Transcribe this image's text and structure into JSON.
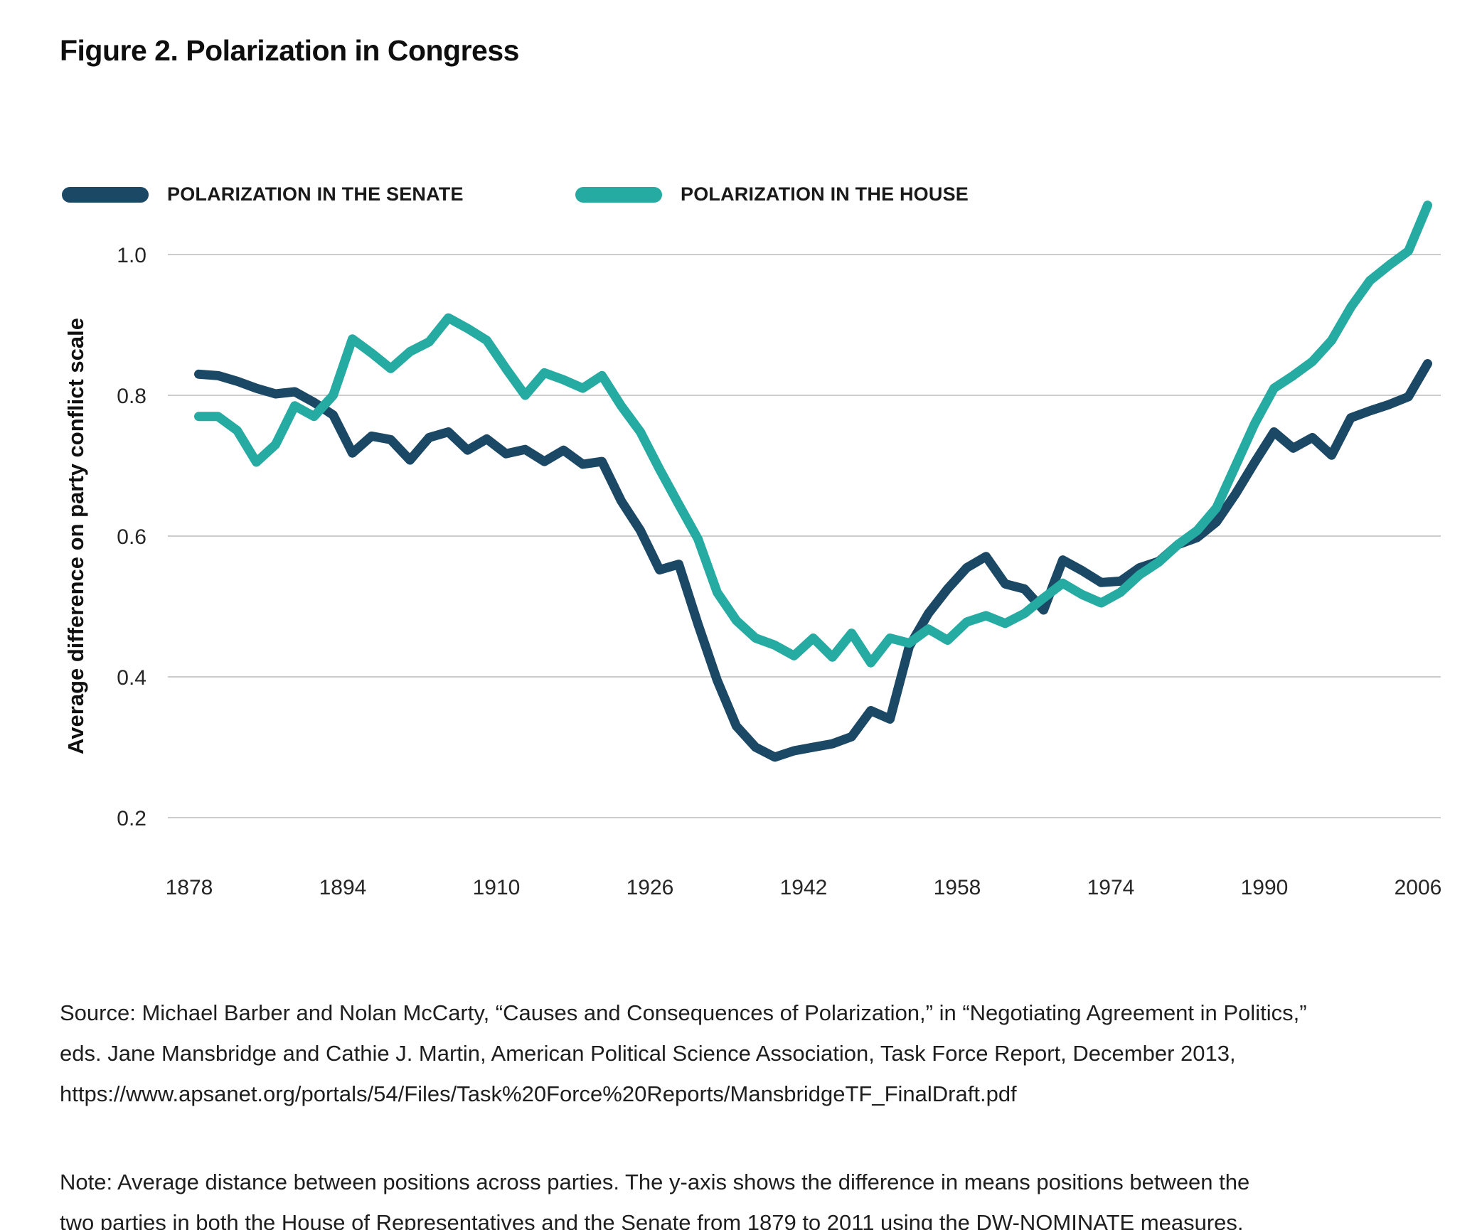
{
  "figure": {
    "title": "Figure 2. Polarization in Congress"
  },
  "legend": [
    {
      "label": "POLARIZATION IN THE SENATE",
      "color": "#1b4865"
    },
    {
      "label": "POLARIZATION IN THE HOUSE",
      "color": "#25aba1"
    }
  ],
  "chart_data": {
    "type": "line",
    "title": "Figure 2. Polarization in Congress",
    "xlabel": "",
    "ylabel": "Average difference on party conflict scale",
    "grid": "horizontal",
    "legend_position": "top-left",
    "xlim": [
      1876,
      2010
    ],
    "ylim": [
      0.13,
      1.12
    ],
    "x_ticks": [
      1878,
      1894,
      1910,
      1926,
      1942,
      1958,
      1974,
      1990,
      2006
    ],
    "y_ticks": [
      {
        "label": "1.0",
        "value": 1.0
      },
      {
        "label": "0.8",
        "value": 0.8
      },
      {
        "label": "0.6",
        "value": 0.6
      },
      {
        "label": "0.4",
        "value": 0.4
      },
      {
        "label": "0.2",
        "value": 0.2
      }
    ],
    "x": [
      1879,
      1881,
      1883,
      1885,
      1887,
      1889,
      1891,
      1893,
      1895,
      1897,
      1899,
      1901,
      1903,
      1905,
      1907,
      1909,
      1911,
      1913,
      1915,
      1917,
      1919,
      1921,
      1923,
      1925,
      1927,
      1929,
      1931,
      1933,
      1935,
      1937,
      1939,
      1941,
      1943,
      1945,
      1947,
      1949,
      1951,
      1953,
      1955,
      1957,
      1959,
      1961,
      1963,
      1965,
      1967,
      1969,
      1971,
      1973,
      1975,
      1977,
      1979,
      1981,
      1983,
      1985,
      1987,
      1989,
      1991,
      1993,
      1995,
      1997,
      1999,
      2001,
      2003,
      2005,
      2007
    ],
    "series": [
      {
        "name": "POLARIZATION IN THE SENATE",
        "color": "#1b4865",
        "values": [
          0.83,
          0.828,
          0.82,
          0.81,
          0.802,
          0.805,
          0.79,
          0.772,
          0.718,
          0.742,
          0.737,
          0.708,
          0.74,
          0.748,
          0.722,
          0.738,
          0.717,
          0.723,
          0.706,
          0.722,
          0.702,
          0.706,
          0.65,
          0.608,
          0.552,
          0.56,
          0.475,
          0.395,
          0.33,
          0.3,
          0.286,
          0.295,
          0.3,
          0.305,
          0.315,
          0.352,
          0.34,
          0.443,
          0.49,
          0.525,
          0.555,
          0.571,
          0.532,
          0.525,
          0.495,
          0.566,
          0.551,
          0.534,
          0.536,
          0.555,
          0.564,
          0.588,
          0.598,
          0.62,
          0.66,
          0.705,
          0.748,
          0.725,
          0.74,
          0.715,
          0.768,
          0.778,
          0.787,
          0.798,
          0.845
        ]
      },
      {
        "name": "POLARIZATION IN THE HOUSE",
        "color": "#25aba1",
        "values": [
          0.77,
          0.77,
          0.75,
          0.705,
          0.73,
          0.785,
          0.77,
          0.8,
          0.88,
          0.86,
          0.838,
          0.862,
          0.876,
          0.91,
          0.895,
          0.878,
          0.838,
          0.8,
          0.832,
          0.822,
          0.81,
          0.828,
          0.785,
          0.748,
          0.695,
          0.645,
          0.596,
          0.52,
          0.48,
          0.455,
          0.445,
          0.43,
          0.455,
          0.428,
          0.462,
          0.42,
          0.455,
          0.448,
          0.468,
          0.452,
          0.478,
          0.487,
          0.476,
          0.49,
          0.512,
          0.533,
          0.517,
          0.505,
          0.52,
          0.545,
          0.563,
          0.588,
          0.608,
          0.64,
          0.7,
          0.76,
          0.81,
          0.828,
          0.848,
          0.878,
          0.925,
          0.963,
          0.985,
          1.005,
          1.07
        ]
      }
    ]
  },
  "source": {
    "lines": [
      "Source: Michael Barber and Nolan McCarty, “Causes and Consequences of Polarization,” in “Negotiating Agreement in Politics,”",
      "eds. Jane Mansbridge and Cathie J. Martin, American Political Science Association, Task Force Report, December 2013,",
      "https://www.apsanet.org/portals/54/Files/Task%20Force%20Reports/MansbridgeTF_FinalDraft.pdf"
    ]
  },
  "note": {
    "lines": [
      "Note: Average distance between positions across parties. The y-axis shows the difference in means positions between the",
      "two parties in both the House of Representatives and the Senate from 1879 to 2011 using the DW-NOMINATE measures."
    ]
  }
}
